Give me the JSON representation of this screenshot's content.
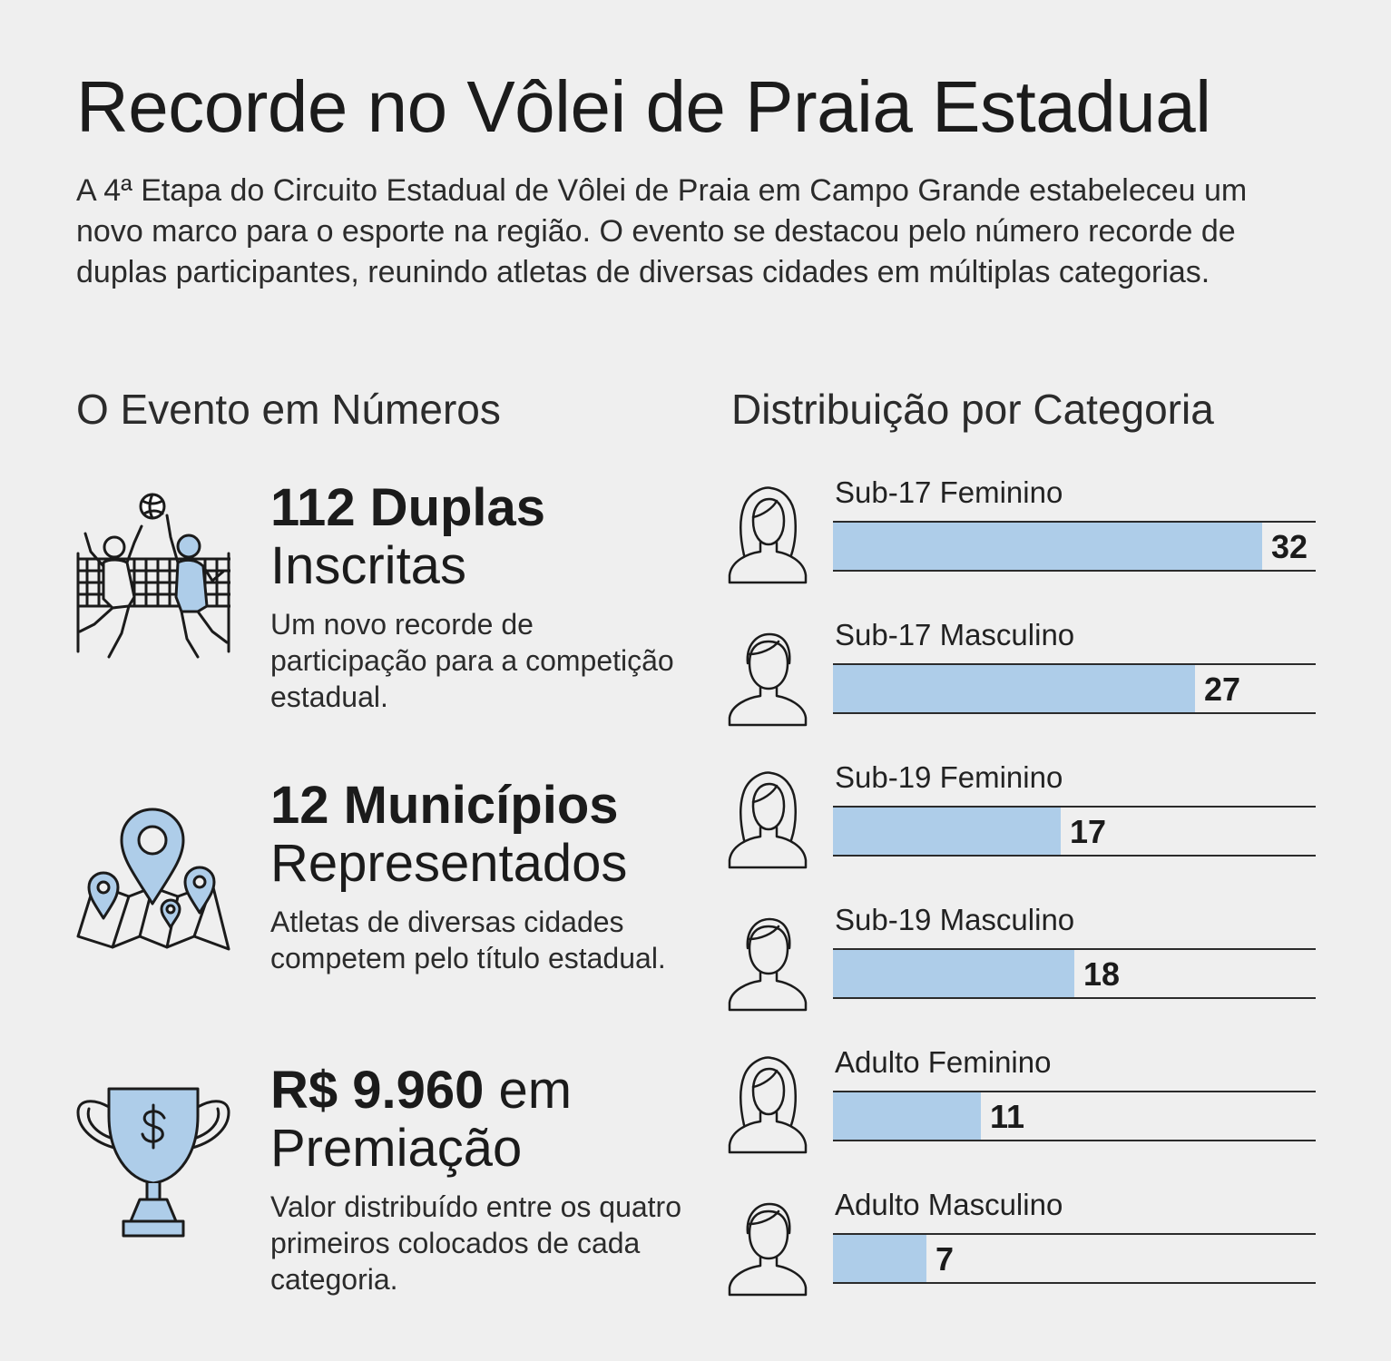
{
  "title": "Recorde no Vôlei de Praia Estadual",
  "intro": "A 4ª Etapa do Circuito Estadual de Vôlei de Praia em Campo Grande estabeleceu um novo marco para o esporte na região. O evento se destacou pelo número recorde de duplas participantes, reunindo atletas de diversas cidades em múltiplas categorias.",
  "left_section": {
    "heading": "O Evento em Números",
    "stats": [
      {
        "bold": "112 Duplas",
        "normal": "",
        "sub": "Inscritas",
        "desc": "Um novo recorde de participação para a competição estadual.",
        "icon": "volleyball-players-icon"
      },
      {
        "bold": "12 Municípios",
        "normal": "",
        "sub": "Representados",
        "desc": "Atletas de diversas cidades competem pelo título estadual.",
        "icon": "map-pins-icon"
      },
      {
        "bold": "R$ 9.960",
        "normal": " em",
        "sub": "Premiação",
        "desc": "Valor distribuído entre os quatro primeiros colocados de cada categoria.",
        "icon": "trophy-dollar-icon"
      }
    ]
  },
  "chart_data": {
    "type": "bar",
    "title": "Distribuição por Categoria",
    "categories": [
      "Sub-17 Feminino",
      "Sub-17 Masculino",
      "Sub-19 Feminino",
      "Sub-19 Masculino",
      "Adulto Feminino",
      "Adulto Masculino"
    ],
    "values": [
      32,
      27,
      17,
      18,
      11,
      7
    ],
    "genders": [
      "female",
      "male",
      "female",
      "male",
      "female",
      "male"
    ],
    "bar_color": "#aecde9",
    "xlim": [
      0,
      36
    ]
  }
}
